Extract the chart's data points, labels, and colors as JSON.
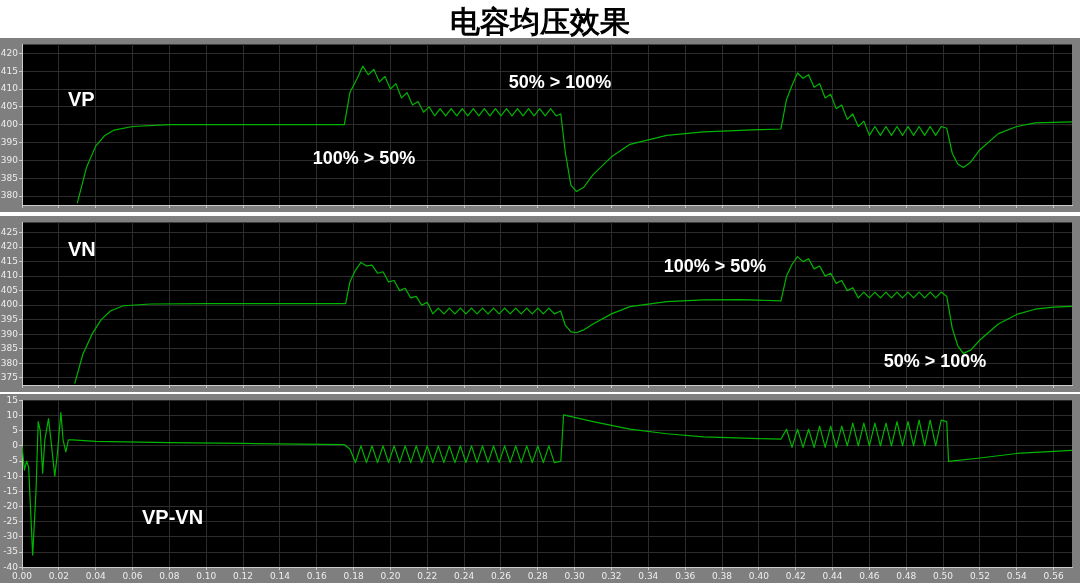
{
  "chart_data": [
    {
      "type": "line",
      "title": "电容均压效果",
      "xlim": [
        0,
        0.57
      ],
      "ylim": [
        377.5,
        422.5
      ],
      "yticks": [
        380,
        385,
        390,
        395,
        400,
        405,
        410,
        415,
        420
      ],
      "xticks": [
        {
          "value": 0,
          "label": null
        },
        {
          "value": 0.02,
          "label": null
        },
        {
          "value": 0.04,
          "label": null
        },
        {
          "value": 0.06,
          "label": null
        },
        {
          "value": 0.08,
          "label": null
        },
        {
          "value": 0.1,
          "label": null
        },
        {
          "value": 0.12,
          "label": null
        },
        {
          "value": 0.14,
          "label": null
        },
        {
          "value": 0.16,
          "label": null
        },
        {
          "value": 0.18,
          "label": null
        },
        {
          "value": 0.2,
          "label": null
        },
        {
          "value": 0.22,
          "label": null
        },
        {
          "value": 0.24,
          "label": null
        },
        {
          "value": 0.26,
          "label": null
        },
        {
          "value": 0.28,
          "label": null
        },
        {
          "value": 0.3,
          "label": null
        },
        {
          "value": 0.32,
          "label": null
        },
        {
          "value": 0.34,
          "label": null
        },
        {
          "value": 0.36,
          "label": null
        },
        {
          "value": 0.38,
          "label": null
        },
        {
          "value": 0.4,
          "label": null
        },
        {
          "value": 0.42,
          "label": null
        },
        {
          "value": 0.44,
          "label": null
        },
        {
          "value": 0.46,
          "label": null
        },
        {
          "value": 0.48,
          "label": null
        },
        {
          "value": 0.5,
          "label": null
        },
        {
          "value": 0.52,
          "label": null
        },
        {
          "value": 0.54,
          "label": null
        },
        {
          "value": 0.56,
          "label": null
        }
      ],
      "tick_labels": "y",
      "grid": true,
      "legend": false,
      "annotations": [
        "100% > 50%",
        "50% > 100%"
      ],
      "series": [
        {
          "name": "VP",
          "color": "#00b400",
          "x": [
            0.03,
            0.035,
            0.04,
            0.045,
            0.05,
            0.06,
            0.08,
            0.175,
            0.178,
            0.182,
            0.185,
            0.188,
            0.191,
            0.194,
            0.197,
            0.2,
            0.203,
            0.206,
            0.209,
            0.212,
            0.215,
            0.218,
            0.221,
            0.224,
            0.227,
            0.23,
            0.233,
            0.236,
            0.239,
            0.242,
            0.245,
            0.248,
            0.251,
            0.254,
            0.257,
            0.26,
            0.263,
            0.266,
            0.269,
            0.272,
            0.275,
            0.278,
            0.281,
            0.284,
            0.287,
            0.29,
            0.2925,
            0.295,
            0.298,
            0.301,
            0.305,
            0.31,
            0.32,
            0.33,
            0.35,
            0.37,
            0.4,
            0.412,
            0.415,
            0.418,
            0.421,
            0.424,
            0.427,
            0.43,
            0.433,
            0.436,
            0.439,
            0.442,
            0.445,
            0.448,
            0.451,
            0.454,
            0.457,
            0.46,
            0.463,
            0.466,
            0.469,
            0.472,
            0.475,
            0.478,
            0.481,
            0.484,
            0.487,
            0.49,
            0.493,
            0.496,
            0.499,
            0.502,
            0.505,
            0.508,
            0.511,
            0.515,
            0.52,
            0.53,
            0.54,
            0.55,
            0.57
          ],
          "values": [
            378,
            388,
            394,
            397,
            398.5,
            399.5,
            400,
            400,
            409,
            413,
            416.4,
            414,
            415.5,
            412,
            413.5,
            410,
            411.5,
            407.5,
            409,
            405.5,
            406.5,
            403.5,
            405,
            402.5,
            404.5,
            402.5,
            404.5,
            402.5,
            404.5,
            402.5,
            404.5,
            402.5,
            404.5,
            402.5,
            404.5,
            402.5,
            404.5,
            402.5,
            404.5,
            402.5,
            404.5,
            402.5,
            404.5,
            402.5,
            404.5,
            402.5,
            403,
            392,
            383,
            381.3,
            382.5,
            386,
            391,
            394.5,
            397,
            398,
            398.6,
            398.8,
            407,
            411,
            414.5,
            413,
            414,
            410.5,
            411.5,
            407.5,
            408.5,
            404.5,
            405.5,
            401.5,
            403,
            399.5,
            401,
            397,
            399.5,
            397,
            399.5,
            397,
            399.5,
            397,
            399.5,
            397,
            399.5,
            397,
            399.5,
            397,
            399.5,
            399,
            392,
            389,
            388,
            389.5,
            393,
            397.5,
            399.5,
            400.5,
            400.8
          ]
        }
      ]
    },
    {
      "type": "line",
      "xlim": [
        0,
        0.57
      ],
      "ylim": [
        372.5,
        428.5
      ],
      "yticks": [
        375,
        380,
        385,
        390,
        395,
        400,
        405,
        410,
        415,
        420,
        425
      ],
      "xticks": [
        {
          "value": 0,
          "label": null
        },
        {
          "value": 0.02,
          "label": null
        },
        {
          "value": 0.04,
          "label": null
        },
        {
          "value": 0.06,
          "label": null
        },
        {
          "value": 0.08,
          "label": null
        },
        {
          "value": 0.1,
          "label": null
        },
        {
          "value": 0.12,
          "label": null
        },
        {
          "value": 0.14,
          "label": null
        },
        {
          "value": 0.16,
          "label": null
        },
        {
          "value": 0.18,
          "label": null
        },
        {
          "value": 0.2,
          "label": null
        },
        {
          "value": 0.22,
          "label": null
        },
        {
          "value": 0.24,
          "label": null
        },
        {
          "value": 0.26,
          "label": null
        },
        {
          "value": 0.28,
          "label": null
        },
        {
          "value": 0.3,
          "label": null
        },
        {
          "value": 0.32,
          "label": null
        },
        {
          "value": 0.34,
          "label": null
        },
        {
          "value": 0.36,
          "label": null
        },
        {
          "value": 0.38,
          "label": null
        },
        {
          "value": 0.4,
          "label": null
        },
        {
          "value": 0.42,
          "label": null
        },
        {
          "value": 0.44,
          "label": null
        },
        {
          "value": 0.46,
          "label": null
        },
        {
          "value": 0.48,
          "label": null
        },
        {
          "value": 0.5,
          "label": null
        },
        {
          "value": 0.52,
          "label": null
        },
        {
          "value": 0.54,
          "label": null
        },
        {
          "value": 0.56,
          "label": null
        }
      ],
      "tick_labels": "y",
      "grid": true,
      "legend": false,
      "annotations": [
        "100% > 50%",
        "50% > 100%"
      ],
      "series": [
        {
          "name": "VN",
          "color": "#00b400",
          "x": [
            0.0286,
            0.033,
            0.038,
            0.043,
            0.048,
            0.055,
            0.07,
            0.1,
            0.1757,
            0.178,
            0.181,
            0.184,
            0.187,
            0.19,
            0.193,
            0.196,
            0.199,
            0.202,
            0.205,
            0.208,
            0.211,
            0.214,
            0.217,
            0.22,
            0.223,
            0.226,
            0.229,
            0.232,
            0.235,
            0.238,
            0.241,
            0.244,
            0.247,
            0.25,
            0.253,
            0.256,
            0.259,
            0.262,
            0.265,
            0.268,
            0.271,
            0.274,
            0.277,
            0.28,
            0.283,
            0.286,
            0.289,
            0.2924,
            0.295,
            0.298,
            0.301,
            0.305,
            0.31,
            0.32,
            0.33,
            0.35,
            0.37,
            0.39,
            0.412,
            0.415,
            0.418,
            0.421,
            0.424,
            0.427,
            0.43,
            0.433,
            0.436,
            0.439,
            0.442,
            0.445,
            0.448,
            0.451,
            0.454,
            0.457,
            0.46,
            0.463,
            0.466,
            0.469,
            0.472,
            0.475,
            0.478,
            0.481,
            0.484,
            0.487,
            0.49,
            0.493,
            0.496,
            0.499,
            0.502,
            0.505,
            0.508,
            0.511,
            0.515,
            0.52,
            0.53,
            0.54,
            0.55,
            0.56,
            0.57
          ],
          "values": [
            373,
            383,
            390,
            395,
            398,
            399.8,
            400.4,
            400.5,
            400.5,
            408,
            412,
            414.7,
            413.5,
            413.8,
            411,
            411.5,
            408,
            408.5,
            405,
            405.8,
            402.5,
            403,
            400,
            401,
            397,
            399,
            397,
            399,
            397,
            399,
            397,
            399,
            397,
            399,
            397,
            399,
            397,
            399,
            397,
            399,
            397,
            399,
            397,
            399,
            397,
            399,
            397,
            398,
            393,
            390.8,
            390.5,
            391.5,
            393.5,
            397,
            399.5,
            401.2,
            401.8,
            401.9,
            401.5,
            410,
            414,
            416.7,
            415,
            416,
            412.5,
            413.5,
            410,
            411,
            407.5,
            408.5,
            405,
            406,
            402.5,
            404.5,
            402.5,
            404.5,
            402.5,
            404.5,
            402.5,
            404.5,
            402.5,
            404.5,
            402.5,
            404.5,
            402.5,
            404.5,
            402.5,
            404.5,
            403,
            392,
            386,
            383.4,
            384.5,
            388,
            393.5,
            396.8,
            398.6,
            399.3,
            399.6
          ]
        }
      ]
    },
    {
      "type": "line",
      "xlim": [
        0,
        0.57
      ],
      "ylim": [
        -40,
        15
      ],
      "yticks": [
        -40,
        -35,
        -30,
        -25,
        -20,
        -15,
        -10,
        -5,
        0,
        5,
        10,
        15
      ],
      "xticks": [
        {
          "value": 0,
          "label": "0.00"
        },
        {
          "value": 0.02,
          "label": "0.02"
        },
        {
          "value": 0.04,
          "label": "0.04"
        },
        {
          "value": 0.06,
          "label": "0.06"
        },
        {
          "value": 0.08,
          "label": "0.08"
        },
        {
          "value": 0.1,
          "label": "0.10"
        },
        {
          "value": 0.12,
          "label": "0.12"
        },
        {
          "value": 0.14,
          "label": "0.14"
        },
        {
          "value": 0.16,
          "label": "0.16"
        },
        {
          "value": 0.18,
          "label": "0.18"
        },
        {
          "value": 0.2,
          "label": "0.20"
        },
        {
          "value": 0.22,
          "label": "0.22"
        },
        {
          "value": 0.24,
          "label": "0.24"
        },
        {
          "value": 0.26,
          "label": "0.26"
        },
        {
          "value": 0.28,
          "label": "0.28"
        },
        {
          "value": 0.3,
          "label": "0.30"
        },
        {
          "value": 0.32,
          "label": "0.32"
        },
        {
          "value": 0.34,
          "label": "0.34"
        },
        {
          "value": 0.36,
          "label": "0.36"
        },
        {
          "value": 0.38,
          "label": "0.38"
        },
        {
          "value": 0.4,
          "label": "0.40"
        },
        {
          "value": 0.42,
          "label": "0.42"
        },
        {
          "value": 0.44,
          "label": "0.44"
        },
        {
          "value": 0.46,
          "label": "0.46"
        },
        {
          "value": 0.48,
          "label": "0.48"
        },
        {
          "value": 0.5,
          "label": "0.50"
        },
        {
          "value": 0.52,
          "label": "0.52"
        },
        {
          "value": 0.54,
          "label": "0.54"
        },
        {
          "value": 0.56,
          "label": "0.56"
        }
      ],
      "grid": true,
      "legend": false,
      "series": [
        {
          "name": "VP-VN",
          "color": "#00b400",
          "x": [
            0,
            0.0013,
            0.0025,
            0.0036,
            0.0058,
            0.0076,
            0.0088,
            0.0099,
            0.0112,
            0.0124,
            0.0144,
            0.0157,
            0.0178,
            0.0193,
            0.0211,
            0.0223,
            0.0238,
            0.0252,
            0.0274,
            0.04,
            0.08,
            0.12,
            0.175,
            0.178,
            0.181,
            0.184,
            0.187,
            0.19,
            0.193,
            0.196,
            0.199,
            0.202,
            0.205,
            0.208,
            0.211,
            0.214,
            0.217,
            0.22,
            0.223,
            0.226,
            0.229,
            0.232,
            0.235,
            0.238,
            0.241,
            0.244,
            0.247,
            0.25,
            0.253,
            0.256,
            0.259,
            0.262,
            0.265,
            0.268,
            0.271,
            0.274,
            0.277,
            0.28,
            0.283,
            0.286,
            0.289,
            0.2925,
            0.294,
            0.31,
            0.33,
            0.35,
            0.37,
            0.4,
            0.412,
            0.415,
            0.418,
            0.421,
            0.424,
            0.427,
            0.43,
            0.433,
            0.436,
            0.439,
            0.442,
            0.445,
            0.448,
            0.451,
            0.454,
            0.457,
            0.46,
            0.463,
            0.466,
            0.469,
            0.472,
            0.475,
            0.478,
            0.481,
            0.484,
            0.487,
            0.49,
            0.493,
            0.496,
            0.499,
            0.502,
            0.503,
            0.52,
            0.54,
            0.57
          ],
          "values": [
            0,
            -8,
            -5,
            -7,
            -36,
            -15,
            8,
            5,
            -9,
            2,
            9,
            2,
            -10,
            -2,
            11,
            2,
            -2,
            2,
            2,
            1.5,
            1.1,
            0.8,
            0.4,
            -1,
            -5.5,
            0,
            -5.5,
            0,
            -5.5,
            0,
            -5.5,
            0,
            -5.5,
            0,
            -5.5,
            0,
            -5.5,
            0,
            -5.5,
            0,
            -5.5,
            0,
            -5.5,
            0,
            -5.5,
            0,
            -5.5,
            0,
            -5.5,
            0,
            -5.5,
            0,
            -5.5,
            0,
            -5.5,
            0,
            -5.5,
            0,
            -5.5,
            0,
            -5.5,
            -5,
            10.2,
            8,
            5.5,
            4,
            3,
            2.4,
            2.2,
            5.5,
            -0.5,
            5.5,
            -0.5,
            5.5,
            -0.5,
            6.5,
            -0.5,
            6.5,
            -0.5,
            6.5,
            0,
            7.5,
            0,
            7.5,
            0,
            7.5,
            0,
            7.5,
            0,
            8,
            0,
            8,
            0,
            8.5,
            0,
            8.5,
            0,
            8.5,
            8,
            -5.1,
            -4,
            -2.5,
            -1.5
          ]
        }
      ]
    }
  ]
}
